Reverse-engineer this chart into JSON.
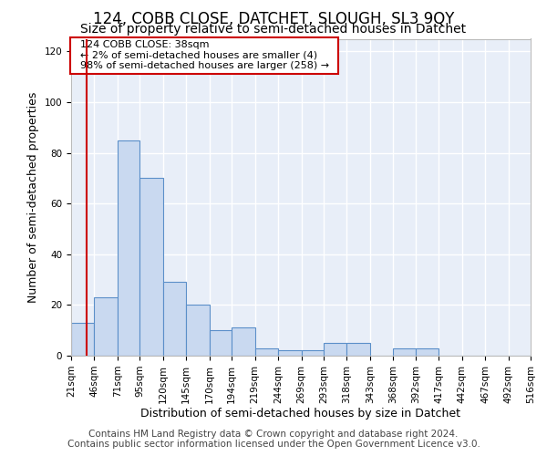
{
  "title": "124, COBB CLOSE, DATCHET, SLOUGH, SL3 9QY",
  "subtitle": "Size of property relative to semi-detached houses in Datchet",
  "xlabel": "Distribution of semi-detached houses by size in Datchet",
  "ylabel": "Number of semi-detached properties",
  "footer_line1": "Contains HM Land Registry data © Crown copyright and database right 2024.",
  "footer_line2": "Contains public sector information licensed under the Open Government Licence v3.0.",
  "annotation_title": "124 COBB CLOSE: 38sqm",
  "annotation_line2": "← 2% of semi-detached houses are smaller (4)",
  "annotation_line3": "98% of semi-detached houses are larger (258) →",
  "property_size": 38,
  "bin_edges": [
    21,
    46,
    71,
    95,
    120,
    145,
    170,
    194,
    219,
    244,
    269,
    293,
    318,
    343,
    368,
    392,
    417,
    442,
    467,
    492,
    516
  ],
  "bar_heights": [
    13,
    23,
    85,
    70,
    29,
    20,
    10,
    11,
    3,
    2,
    2,
    5,
    5,
    0,
    3,
    3,
    0,
    0,
    0,
    0
  ],
  "bar_color": "#c9d9f0",
  "bar_edge_color": "#5b8fc9",
  "vline_color": "#cc0000",
  "vline_x": 38,
  "ylim": [
    0,
    125
  ],
  "yticks": [
    0,
    20,
    40,
    60,
    80,
    100,
    120
  ],
  "background_color": "#e8eef8",
  "grid_color": "#ffffff",
  "title_fontsize": 12,
  "subtitle_fontsize": 10,
  "label_fontsize": 9,
  "tick_fontsize": 7.5,
  "footer_fontsize": 7.5
}
